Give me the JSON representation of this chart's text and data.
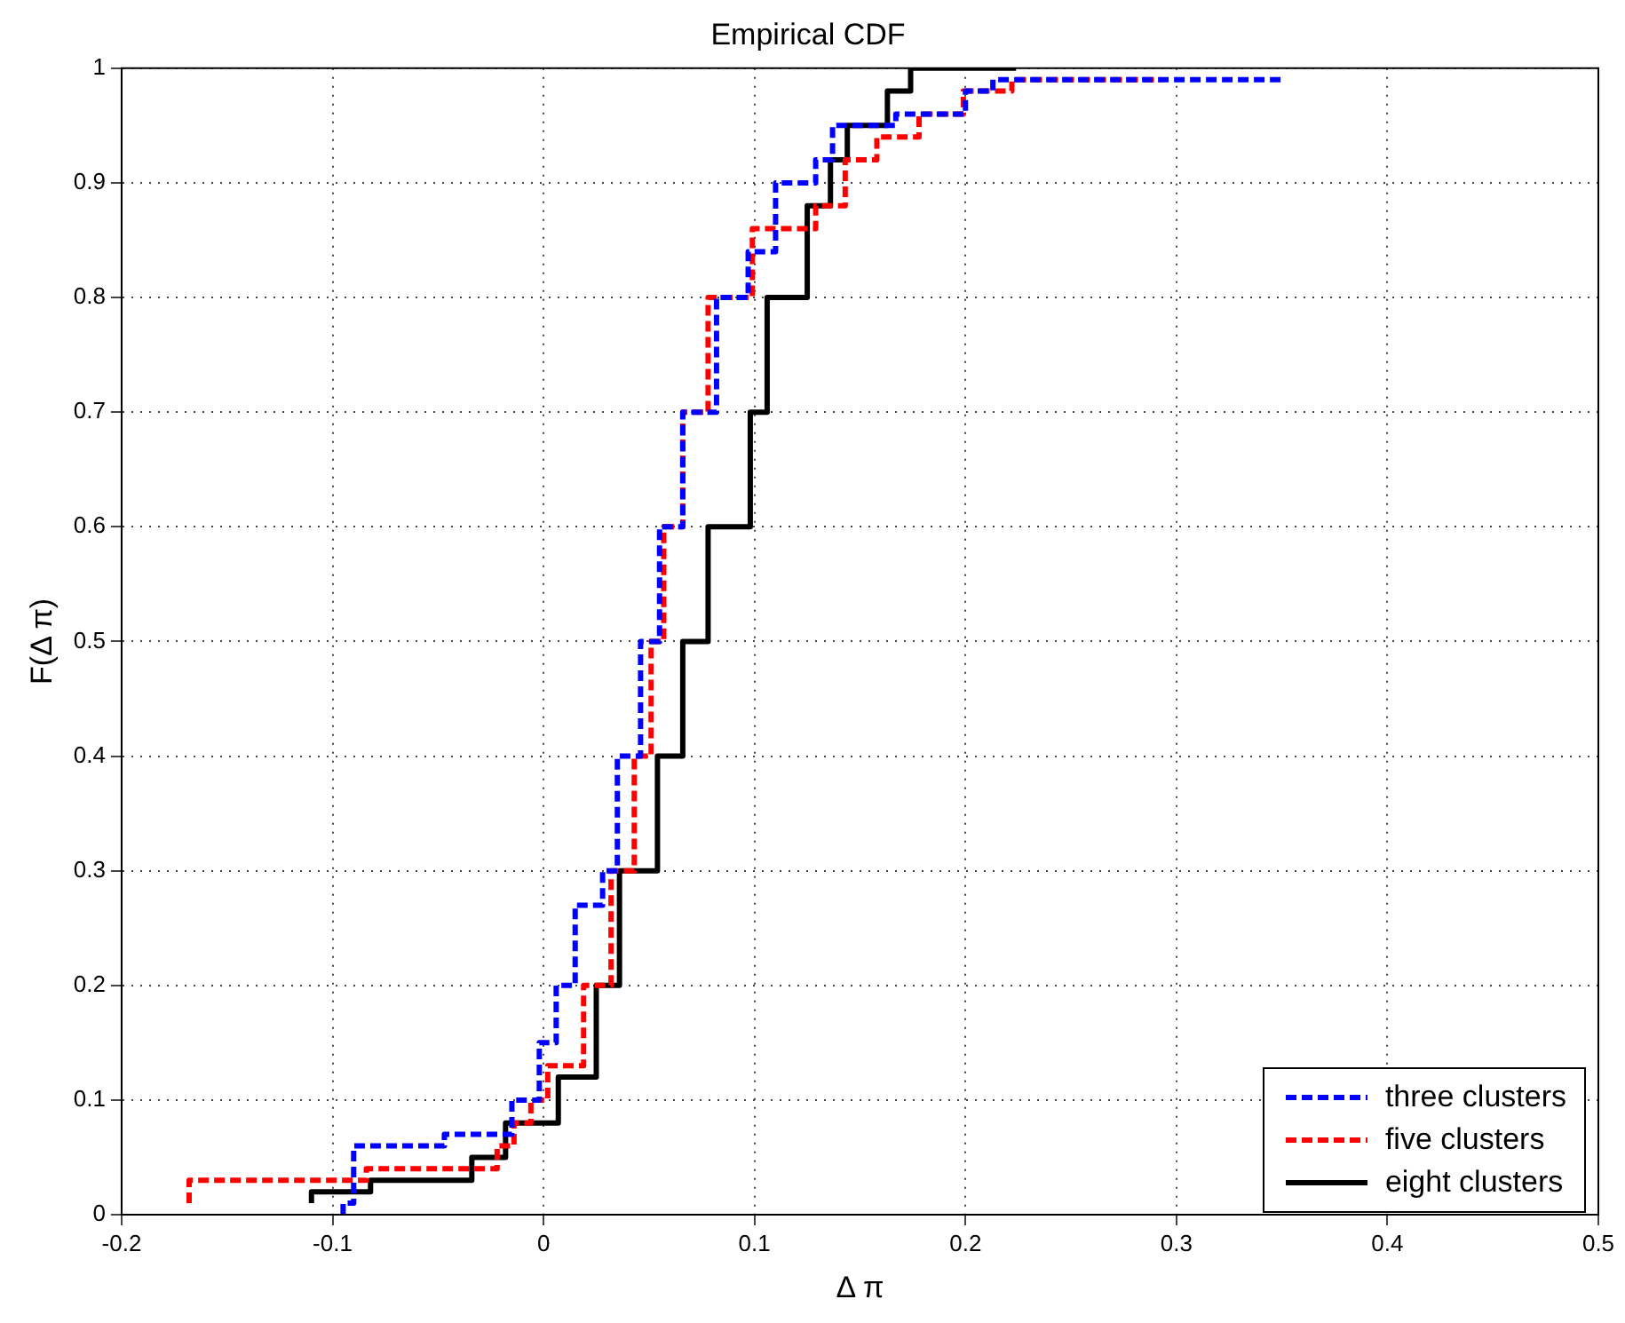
{
  "chart_data": {
    "type": "step",
    "title": "Empirical CDF",
    "xlabel": "Δ π",
    "ylabel": "F(Δ π)",
    "xlim": [
      -0.2,
      0.5
    ],
    "xticks": [
      -0.2,
      -0.1,
      0,
      0.1,
      0.2,
      0.3,
      0.4,
      0.5
    ],
    "ylim": [
      0,
      1
    ],
    "yticks": [
      0,
      0.1,
      0.2,
      0.3,
      0.4,
      0.5,
      0.6,
      0.7,
      0.8,
      0.9,
      1
    ],
    "grid": true,
    "legend": "bottom right",
    "series": [
      {
        "name": "three clusters",
        "color": "#0000ff",
        "line_style": "dashed",
        "x": [
          -0.095,
          -0.09,
          -0.047,
          -0.015,
          -0.002,
          0.006,
          0.015,
          0.028,
          0.035,
          0.046,
          0.055,
          0.066,
          0.082,
          0.097,
          0.11,
          0.129,
          0.137,
          0.167,
          0.2,
          0.213,
          0.247,
          0.35
        ],
        "values": [
          0,
          0.01,
          0.06,
          0.07,
          0.1,
          0.15,
          0.2,
          0.27,
          0.3,
          0.4,
          0.5,
          0.6,
          0.7,
          0.8,
          0.84,
          0.9,
          0.92,
          0.95,
          0.96,
          0.98,
          0.99,
          0.99
        ]
      },
      {
        "name": "five clusters",
        "color": "#ff0000",
        "line_style": "dashed",
        "x": [
          -0.168,
          -0.084,
          -0.022,
          -0.014,
          -0.006,
          0.002,
          0.019,
          0.032,
          0.043,
          0.051,
          0.057,
          0.066,
          0.078,
          0.099,
          0.129,
          0.143,
          0.158,
          0.178,
          0.199,
          0.222,
          0.247,
          0.293
        ],
        "values": [
          0.01,
          0.03,
          0.04,
          0.06,
          0.08,
          0.1,
          0.13,
          0.2,
          0.3,
          0.4,
          0.5,
          0.6,
          0.7,
          0.8,
          0.86,
          0.88,
          0.92,
          0.94,
          0.96,
          0.98,
          0.99,
          0.99
        ]
      },
      {
        "name": "eight clusters",
        "color": "#000000",
        "line_style": "solid",
        "x": [
          -0.11,
          -0.082,
          -0.034,
          -0.018,
          0.007,
          0.025,
          0.036,
          0.054,
          0.066,
          0.078,
          0.098,
          0.106,
          0.125,
          0.136,
          0.144,
          0.163,
          0.174,
          0.224
        ],
        "values": [
          0.01,
          0.02,
          0.03,
          0.05,
          0.08,
          0.12,
          0.2,
          0.3,
          0.4,
          0.5,
          0.6,
          0.7,
          0.8,
          0.88,
          0.92,
          0.95,
          0.98,
          1
        ]
      }
    ]
  }
}
